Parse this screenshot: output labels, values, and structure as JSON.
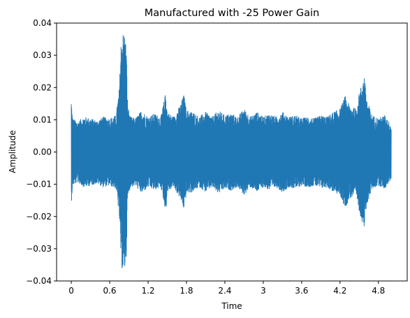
{
  "chart_data": {
    "type": "line",
    "title": "Manufactured with -25 Power Gain",
    "xlabel": "Time",
    "ylabel": "Amplitude",
    "xlim": [
      -0.23,
      5.25
    ],
    "ylim": [
      -0.04,
      0.04
    ],
    "x_ticks": [
      0,
      0.6,
      1.2,
      1.8,
      2.4,
      3,
      3.6,
      4.2,
      4.8
    ],
    "x_tick_labels": [
      "0",
      "0.6",
      "1.2",
      "1.8",
      "2.4",
      "3",
      "3.6",
      "4.2",
      "4.8"
    ],
    "y_ticks": [
      -0.04,
      -0.03,
      -0.02,
      -0.01,
      0.0,
      0.01,
      0.02,
      0.03,
      0.04
    ],
    "y_tick_labels": [
      "−0.04",
      "−0.03",
      "−0.02",
      "−0.01",
      "0.00",
      "0.01",
      "0.02",
      "0.03",
      "0.04"
    ],
    "grid": false,
    "series_color": "#1f77b4",
    "series": [
      {
        "x_start": 0.0,
        "x_end": 5.0,
        "envelope": [
          [
            0.0,
            0.0165
          ],
          [
            0.02,
            0.0105
          ],
          [
            0.1,
            0.0095
          ],
          [
            0.2,
            0.011
          ],
          [
            0.3,
            0.0105
          ],
          [
            0.4,
            0.0098
          ],
          [
            0.5,
            0.011
          ],
          [
            0.6,
            0.0105
          ],
          [
            0.7,
            0.0115
          ],
          [
            0.75,
            0.02
          ],
          [
            0.78,
            0.035
          ],
          [
            0.8,
            0.037
          ],
          [
            0.83,
            0.0375
          ],
          [
            0.86,
            0.033
          ],
          [
            0.88,
            0.015
          ],
          [
            0.92,
            0.011
          ],
          [
            1.0,
            0.0105
          ],
          [
            1.1,
            0.013
          ],
          [
            1.2,
            0.011
          ],
          [
            1.3,
            0.012
          ],
          [
            1.4,
            0.011
          ],
          [
            1.48,
            0.019
          ],
          [
            1.5,
            0.0125
          ],
          [
            1.6,
            0.011
          ],
          [
            1.7,
            0.0145
          ],
          [
            1.76,
            0.018
          ],
          [
            1.8,
            0.013
          ],
          [
            1.9,
            0.0125
          ],
          [
            2.0,
            0.011
          ],
          [
            2.1,
            0.0125
          ],
          [
            2.2,
            0.011
          ],
          [
            2.3,
            0.013
          ],
          [
            2.4,
            0.0115
          ],
          [
            2.5,
            0.012
          ],
          [
            2.6,
            0.011
          ],
          [
            2.7,
            0.0135
          ],
          [
            2.8,
            0.011
          ],
          [
            2.9,
            0.0125
          ],
          [
            3.0,
            0.011
          ],
          [
            3.1,
            0.012
          ],
          [
            3.2,
            0.011
          ],
          [
            3.3,
            0.0125
          ],
          [
            3.4,
            0.011
          ],
          [
            3.5,
            0.0115
          ],
          [
            3.6,
            0.0105
          ],
          [
            3.7,
            0.011
          ],
          [
            3.8,
            0.0105
          ],
          [
            3.9,
            0.0115
          ],
          [
            4.0,
            0.011
          ],
          [
            4.1,
            0.0125
          ],
          [
            4.2,
            0.0135
          ],
          [
            4.28,
            0.0175
          ],
          [
            4.35,
            0.0145
          ],
          [
            4.45,
            0.0135
          ],
          [
            4.5,
            0.0185
          ],
          [
            4.55,
            0.022
          ],
          [
            4.58,
            0.024
          ],
          [
            4.62,
            0.0165
          ],
          [
            4.7,
            0.0115
          ],
          [
            4.8,
            0.0105
          ],
          [
            4.9,
            0.0115
          ],
          [
            5.0,
            0.0085
          ]
        ]
      }
    ]
  }
}
